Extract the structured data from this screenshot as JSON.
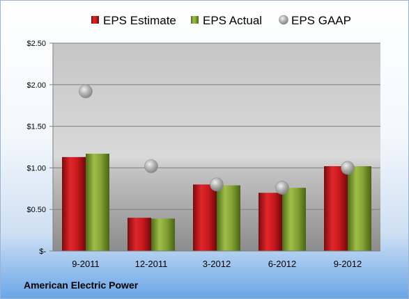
{
  "chart_data": {
    "type": "bar",
    "categories": [
      "9-2011",
      "12-2011",
      "3-2012",
      "6-2012",
      "9-2012"
    ],
    "series": [
      {
        "name": "EPS Estimate",
        "kind": "bar",
        "color": "#c0181c",
        "values": [
          1.13,
          0.4,
          0.8,
          0.7,
          1.02
        ]
      },
      {
        "name": "EPS Actual",
        "kind": "bar",
        "color": "#7f9e2f",
        "values": [
          1.17,
          0.39,
          0.79,
          0.76,
          1.02
        ]
      },
      {
        "name": "EPS GAAP",
        "kind": "marker",
        "color": "#a9a9a9",
        "values": [
          1.92,
          1.02,
          0.8,
          0.76,
          1.0
        ]
      }
    ],
    "y_ticks": [
      {
        "value": 0,
        "label": "$-"
      },
      {
        "value": 0.5,
        "label": "$0.50"
      },
      {
        "value": 1.0,
        "label": "$1.00"
      },
      {
        "value": 1.5,
        "label": "$1.50"
      },
      {
        "value": 2.0,
        "label": "$2.00"
      },
      {
        "value": 2.5,
        "label": "$2.50"
      }
    ],
    "ylim": [
      0,
      2.5
    ],
    "grid": true,
    "legend_position": "top"
  },
  "footer": {
    "company": "American Electric Power"
  }
}
